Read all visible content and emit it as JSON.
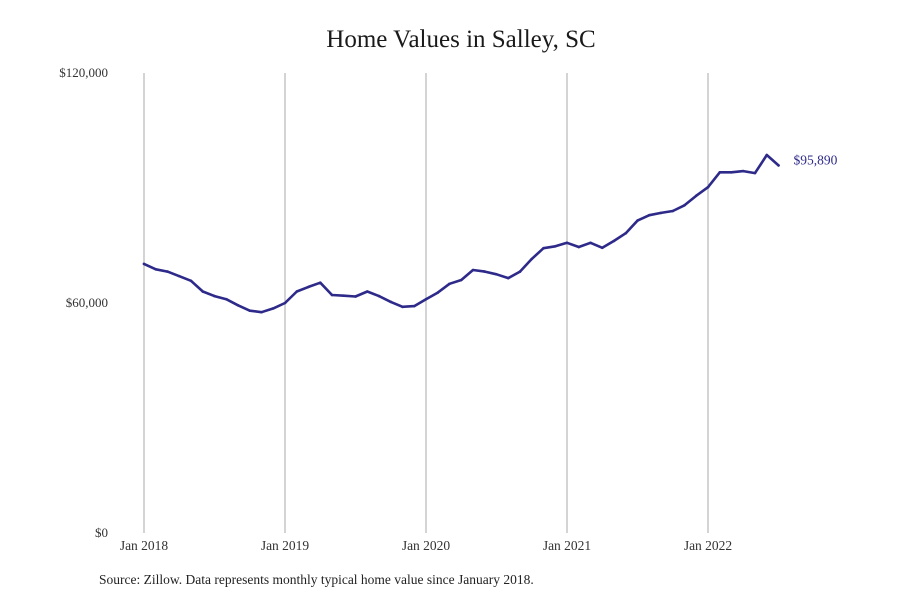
{
  "colors": {
    "line": "#2e2a8a",
    "grid": "#aaaaaa",
    "axis_text": "#333333"
  },
  "source_note": "Source: Zillow. Data represents monthly typical home value since January 2018.",
  "chart_data": {
    "type": "line",
    "title": "Home Values in Salley, SC",
    "xlabel": "",
    "ylabel": "",
    "ylim": [
      0,
      120000
    ],
    "xlim": [
      "2018-01",
      "2022-07"
    ],
    "y_ticks": [
      {
        "value": 0,
        "label": "$0"
      },
      {
        "value": 60000,
        "label": "$60,000"
      },
      {
        "value": 120000,
        "label": "$120,000"
      }
    ],
    "x_ticks": [
      {
        "date": "2018-01",
        "label": "Jan 2018"
      },
      {
        "date": "2019-01",
        "label": "Jan 2019"
      },
      {
        "date": "2020-01",
        "label": "Jan 2020"
      },
      {
        "date": "2021-01",
        "label": "Jan 2021"
      },
      {
        "date": "2022-01",
        "label": "Jan 2022"
      }
    ],
    "grid": "vertical lines at x tick dates",
    "end_label": "$95,890",
    "series": [
      {
        "x": [
          "2018-01",
          "2018-02",
          "2018-03",
          "2018-04",
          "2018-05",
          "2018-06",
          "2018-07",
          "2018-08",
          "2018-09",
          "2018-10",
          "2018-11",
          "2018-12",
          "2019-01",
          "2019-02",
          "2019-03",
          "2019-04",
          "2019-05",
          "2019-06",
          "2019-07",
          "2019-08",
          "2019-09",
          "2019-10",
          "2019-11",
          "2019-12",
          "2020-01",
          "2020-02",
          "2020-03",
          "2020-04",
          "2020-05",
          "2020-06",
          "2020-07",
          "2020-08",
          "2020-09",
          "2020-10",
          "2020-11",
          "2020-12",
          "2021-01",
          "2021-02",
          "2021-03",
          "2021-04",
          "2021-05",
          "2021-06",
          "2021-07",
          "2021-08",
          "2021-09",
          "2021-10",
          "2021-11",
          "2021-12",
          "2022-01",
          "2022-02",
          "2022-03",
          "2022-04",
          "2022-05",
          "2022-06",
          "2022-07"
        ],
        "values": [
          70200,
          68800,
          68200,
          67000,
          65800,
          63000,
          61800,
          61000,
          59400,
          58000,
          57600,
          58600,
          60000,
          63000,
          64200,
          65300,
          62100,
          61900,
          61700,
          63000,
          61800,
          60300,
          59000,
          59200,
          61000,
          62700,
          65000,
          66000,
          68600,
          68200,
          67500,
          66500,
          68200,
          71500,
          74300,
          74800,
          75700,
          74600,
          75700,
          74400,
          76200,
          78200,
          81500,
          82900,
          83500,
          84000,
          85500,
          88000,
          90200,
          94100,
          94100,
          94400,
          93900,
          98600,
          95890
        ]
      }
    ]
  }
}
